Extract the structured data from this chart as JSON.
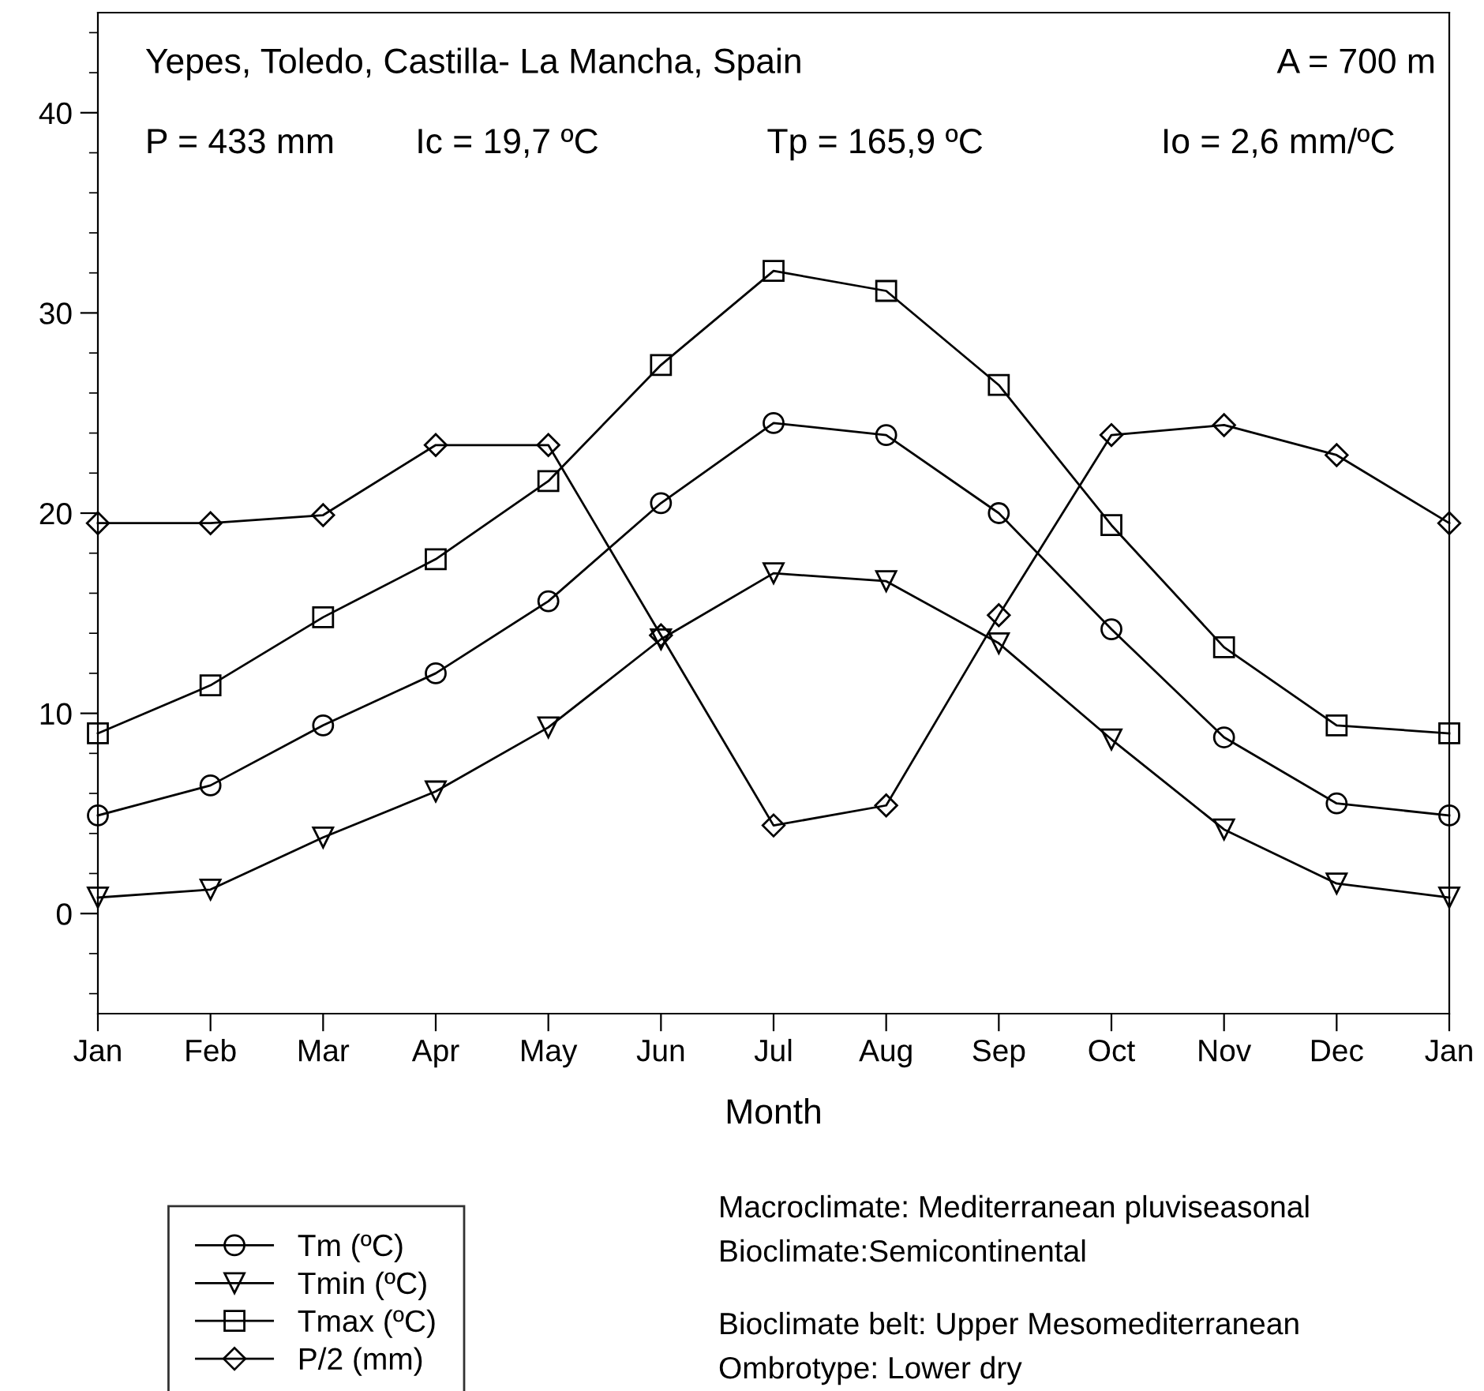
{
  "chart_data": {
    "type": "line",
    "categories": [
      "Jan",
      "Feb",
      "Mar",
      "Apr",
      "May",
      "Jun",
      "Jul",
      "Aug",
      "Sep",
      "Oct",
      "Nov",
      "Dec",
      "Jan"
    ],
    "series": [
      {
        "name": "Tm (ºC)",
        "color": "#000000",
        "marker": "circle",
        "values": [
          4.9,
          6.4,
          9.4,
          12.0,
          15.6,
          20.5,
          24.5,
          23.9,
          20.0,
          14.2,
          8.8,
          5.5,
          4.9
        ]
      },
      {
        "name": "Tmin (ºC)",
        "color": "#000000",
        "marker": "triangle",
        "values": [
          0.8,
          1.2,
          3.8,
          6.1,
          9.3,
          13.7,
          17.0,
          16.6,
          13.5,
          8.7,
          4.2,
          1.5,
          0.8
        ]
      },
      {
        "name": "Tmax (ºC)",
        "color": "#000000",
        "marker": "square",
        "values": [
          9.0,
          11.4,
          14.8,
          17.7,
          21.6,
          27.4,
          32.1,
          31.1,
          26.4,
          19.4,
          13.3,
          9.4,
          9.0
        ]
      },
      {
        "name": "P/2 (mm)",
        "color": "#000000",
        "marker": "diamond",
        "values": [
          19.5,
          19.5,
          19.9,
          23.4,
          23.4,
          13.9,
          4.4,
          5.4,
          14.9,
          23.9,
          24.4,
          22.9,
          19.5
        ]
      }
    ],
    "xlabel": "Month",
    "ylim": [
      -5,
      45
    ],
    "yticks": [
      {
        "value": -4,
        "label": null
      },
      {
        "value": -2,
        "label": null
      },
      0,
      {
        "value": 2,
        "label": null
      },
      {
        "value": 4,
        "label": null
      },
      {
        "value": 6,
        "label": null
      },
      {
        "value": 8,
        "label": null
      },
      10,
      {
        "value": 12,
        "label": null
      },
      {
        "value": 14,
        "label": null
      },
      {
        "value": 16,
        "label": null
      },
      {
        "value": 18,
        "label": null
      },
      20,
      {
        "value": 22,
        "label": null
      },
      {
        "value": 24,
        "label": null
      },
      {
        "value": 26,
        "label": null
      },
      {
        "value": 28,
        "label": null
      },
      30,
      {
        "value": 32,
        "label": null
      },
      {
        "value": 34,
        "label": null
      },
      {
        "value": 36,
        "label": null
      },
      {
        "value": 38,
        "label": null
      },
      40,
      {
        "value": 42,
        "label": null
      },
      {
        "value": 44,
        "label": null
      }
    ],
    "grid": false,
    "legend": "bottom left",
    "line_style": "solid",
    "annotations": [
      "Yepes, Toledo, Castilla- La Mancha, Spain",
      "A = 700 m",
      "P = 433 mm",
      "Ic = 19,7 ºC",
      "Tp = 165,9 ºC",
      "Io = 2,6 mm/ºC",
      "Macroclimate: Mediterranean pluviseasonal",
      "Bioclimate:Semicontinental",
      "Bioclimate belt: Upper Mesomediterranean",
      "Ombrotype: Lower dry"
    ]
  }
}
